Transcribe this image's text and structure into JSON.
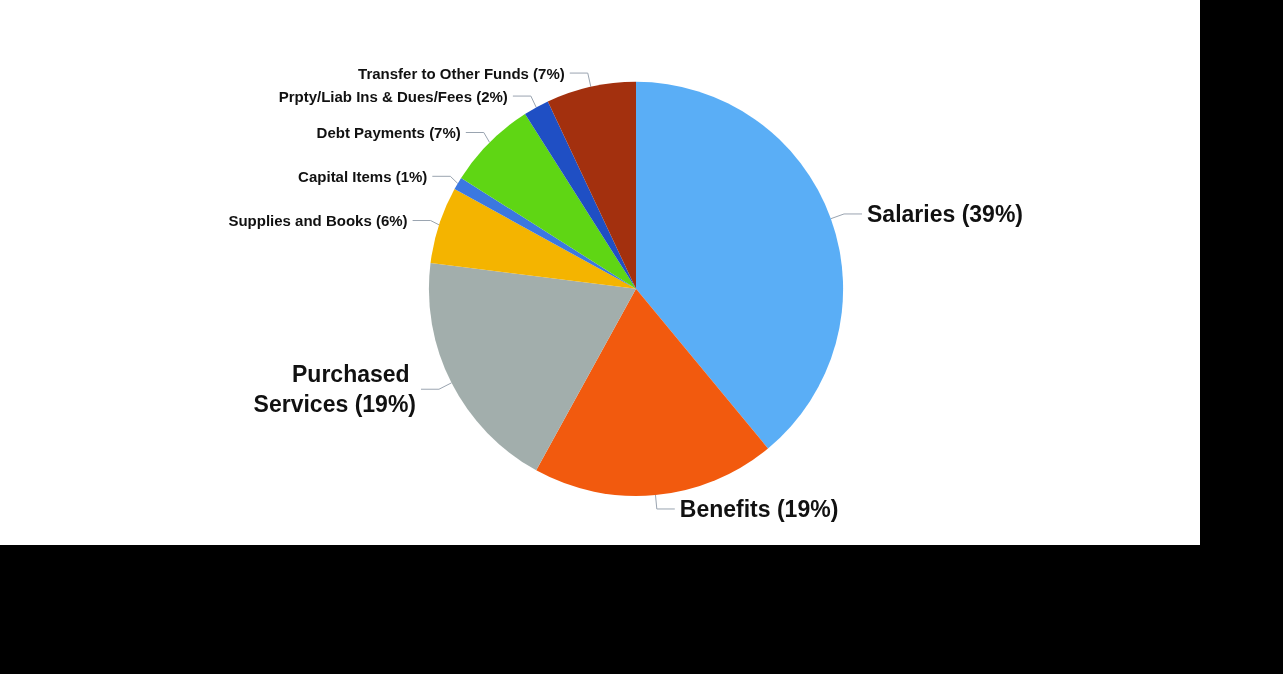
{
  "chart_data": {
    "type": "pie",
    "categories": [
      "Salaries",
      "Benefits",
      "Purchased Services",
      "Supplies and Books",
      "Capital Items",
      "Debt Payments",
      "Prpty/Liab Ins & Dues/Fees",
      "Transfer to Other Funds"
    ],
    "values": [
      39,
      19,
      19,
      6,
      1,
      7,
      2,
      7
    ],
    "value_labels": [
      "(39%)",
      "(19%)",
      "(19%)",
      "(6%)",
      "(1%)",
      "(7%)",
      "(2%)",
      "(7%)"
    ],
    "colors": [
      "#5aaef6",
      "#f25a0e",
      "#a2aeac",
      "#f4b400",
      "#3b78e0",
      "#5fd614",
      "#1f4fc4",
      "#a3300e"
    ]
  }
}
